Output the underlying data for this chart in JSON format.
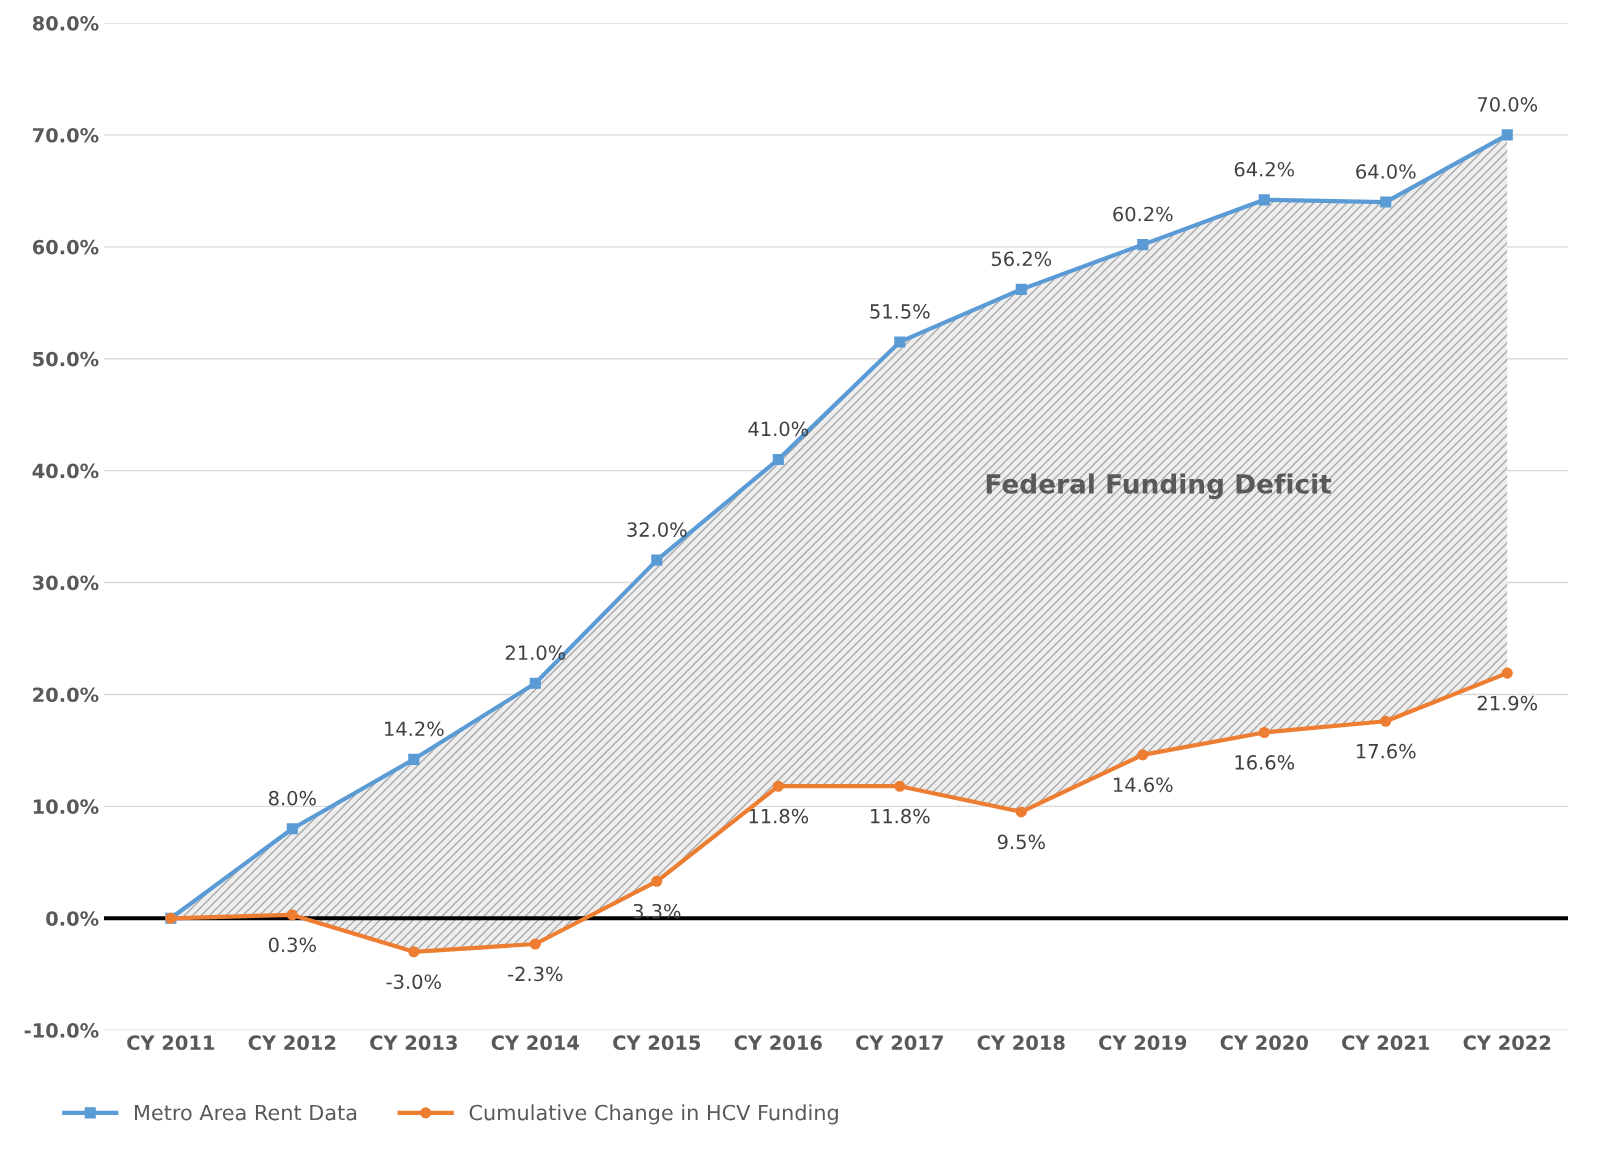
{
  "chart_data": {
    "type": "line",
    "categories": [
      "CY 2011",
      "CY 2012",
      "CY 2013",
      "CY 2014",
      "CY 2015",
      "CY 2016",
      "CY 2017",
      "CY 2018",
      "CY 2019",
      "CY 2020",
      "CY 2021",
      "CY 2022"
    ],
    "series": [
      {
        "name": "Metro Area Rent Data",
        "color": "#5b9bd5",
        "marker": "square",
        "values": [
          0,
          8.0,
          14.2,
          21.0,
          32.0,
          41.0,
          51.5,
          56.2,
          60.2,
          64.2,
          64.0,
          70.0
        ],
        "value_labels": [
          null,
          "8.0%",
          "14.2%",
          "21.0%",
          "32.0%",
          "41.0%",
          "51.5%",
          "56.2%",
          "60.2%",
          "64.2%",
          "64.0%",
          "70.0%"
        ],
        "lower": [
          0,
          0.3,
          -3.0,
          -2.3,
          3.3,
          11.8,
          11.8,
          9.5,
          14.6,
          16.6,
          17.6,
          21.9
        ],
        "upper": [
          0,
          8.0,
          14.2,
          21.0,
          32.0,
          41.0,
          51.5,
          56.2,
          60.2,
          64.2,
          64.0,
          70.0
        ]
      },
      {
        "name": "Cumulative Change in HCV Funding",
        "color": "#ed7d31",
        "marker": "circle",
        "values": [
          0,
          0.3,
          -3.0,
          -2.3,
          3.3,
          11.8,
          11.8,
          9.5,
          14.6,
          16.6,
          17.6,
          21.9
        ],
        "value_labels": [
          null,
          "0.3%",
          "-3.0%",
          "-2.3%",
          "3.3%",
          "11.8%",
          "11.8%",
          "9.5%",
          "14.6%",
          "16.6%",
          "17.6%",
          "21.9%"
        ]
      }
    ],
    "ylim": [
      -10,
      80
    ],
    "yticks": [
      {
        "value": -10,
        "label": "-10.0%"
      },
      {
        "value": 0,
        "label": "0.0%"
      },
      {
        "value": 10,
        "label": "10.0%"
      },
      {
        "value": 20,
        "label": "20.0%"
      },
      {
        "value": 30,
        "label": "30.0%"
      },
      {
        "value": 40,
        "label": "40.0%"
      },
      {
        "value": 50,
        "label": "50.0%"
      },
      {
        "value": 60,
        "label": "60.0%"
      },
      {
        "value": 70,
        "label": "70.0%"
      },
      {
        "value": 80,
        "label": "80.0%"
      }
    ],
    "ref_lines": [
      {
        "axis": "y",
        "value": 0,
        "label": null,
        "color": "#000000"
      }
    ],
    "annotations": [
      "Federal Funding Deficit"
    ],
    "grid": "y",
    "legend": "bottom left",
    "line_style": "solid"
  }
}
